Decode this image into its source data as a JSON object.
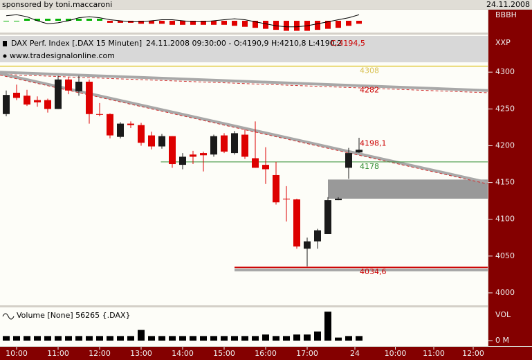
{
  "header": {
    "sponsor": "sponsored by toni.maccaroni",
    "date": "24.11.2008"
  },
  "chart_data": [
    {
      "type": "indicator",
      "axis_label": "BBBH",
      "up_color": "#00b000",
      "down_color": "#e00000",
      "line_color": "#000000",
      "x": [
        0,
        1,
        2,
        3,
        4,
        5,
        6,
        7,
        8,
        9,
        10,
        11,
        12,
        13,
        14,
        15,
        16,
        17,
        18,
        19,
        20,
        21,
        22,
        23,
        24,
        25,
        26,
        27,
        28,
        29,
        30,
        31,
        32,
        33,
        34
      ],
      "values": [
        0,
        0,
        0.2,
        0.2,
        0.2,
        0.2,
        0.2,
        0.2,
        0.2,
        0.2,
        -0.2,
        -0.2,
        -0.2,
        -0.3,
        -0.3,
        -0.3,
        -0.4,
        -0.4,
        -0.4,
        -0.4,
        -0.4,
        -0.4,
        -0.5,
        -0.6,
        -0.7,
        -0.8,
        -0.9,
        -1,
        -1,
        -1,
        -0.9,
        -0.8,
        -0.7,
        -0.5,
        -0.3
      ],
      "line": [
        0.5,
        0.6,
        0.4,
        0,
        -0.3,
        -0.2,
        0,
        0.3,
        0.4,
        0.3,
        0.1,
        0,
        -0.1,
        -0.1,
        0,
        0.1,
        0.1,
        0,
        -0.1,
        -0.1,
        0,
        0.1,
        0.2,
        0.1,
        -0.1,
        -0.3,
        -0.5,
        -0.6,
        -0.6,
        -0.5,
        -0.3,
        -0.1,
        0.1,
        0.3,
        0.6
      ],
      "ylim": [
        -1.1,
        1.1
      ],
      "xlim": [
        -0.6,
        46.4
      ]
    },
    {
      "type": "candlestick",
      "title": "DAX Perf. Index [.DAX 15 Minuten]",
      "subtitle": "24.11.2008 09:30:00 - O:4190,9 H:4210,8 L:4190,2",
      "close_label": "C:4194,5",
      "source": "www.tradesignalonline.com",
      "axis_label": "XXP",
      "up_color": "#1a1a1a",
      "down_color": "#dd0000",
      "x": [
        0,
        1,
        2,
        3,
        4,
        5,
        6,
        7,
        8,
        9,
        10,
        11,
        12,
        13,
        14,
        15,
        16,
        17,
        18,
        19,
        20,
        21,
        22,
        23,
        24,
        25,
        26,
        27,
        28,
        29,
        30,
        31,
        32,
        33,
        34
      ],
      "open": [
        4243,
        4272,
        4268,
        4262,
        4262,
        4250,
        4290,
        4274,
        4287,
        4243,
        4243,
        4212,
        4230,
        4228,
        4214,
        4199,
        4213,
        4174,
        4188,
        4190,
        4188,
        4214,
        4190,
        4215,
        4183,
        4174,
        4160,
        4128,
        4127,
        4060,
        4070,
        4080,
        4126,
        4170,
        4190.9
      ],
      "high": [
        4275,
        4283,
        4276,
        4267,
        4264,
        4295,
        4293,
        4295,
        4290,
        4258,
        4244,
        4232,
        4233,
        4231,
        4219,
        4216,
        4213,
        4190,
        4193,
        4192,
        4215,
        4217,
        4220,
        4222,
        4233,
        4198,
        4178,
        4145,
        4128,
        4075,
        4087,
        4130,
        4130,
        4197,
        4210.8
      ],
      "low": [
        4240,
        4262,
        4254,
        4253,
        4245,
        4250,
        4270,
        4268,
        4230,
        4240,
        4210,
        4210,
        4224,
        4200,
        4195,
        4196,
        4170,
        4168,
        4175,
        4165,
        4185,
        4190,
        4188,
        4182,
        4170,
        4148,
        4120,
        4097,
        4060,
        4036,
        4060,
        4080,
        4126,
        4155,
        4190.2
      ],
      "close": [
        4269,
        4265,
        4256,
        4259,
        4250,
        4290,
        4275,
        4287,
        4243,
        4242,
        4214,
        4230,
        4228,
        4204,
        4199,
        4213,
        4175,
        4185,
        4185,
        4187,
        4213,
        4192,
        4217,
        4185,
        4170,
        4168,
        4123,
        4127,
        4063,
        4070,
        4085,
        4126,
        4128,
        4190,
        4194.5
      ],
      "xlim": [
        -0.6,
        46.4
      ],
      "xticks": [
        {
          "value": 1,
          "label": "10:00"
        },
        {
          "value": 5,
          "label": "11:00"
        },
        {
          "value": 9,
          "label": "12:00"
        },
        {
          "value": 13,
          "label": "13:00"
        },
        {
          "value": 17,
          "label": "14:00"
        },
        {
          "value": 21,
          "label": "15:00"
        },
        {
          "value": 25,
          "label": "16:00"
        },
        {
          "value": 29,
          "label": "17:00"
        },
        {
          "value": 33.6,
          "label": "24"
        },
        {
          "value": 37.5,
          "label": "10:00"
        },
        {
          "value": 41.2,
          "label": "11:00"
        },
        {
          "value": 45,
          "label": "12:00"
        }
      ],
      "ylim": [
        3984,
        4351
      ],
      "yticks": [
        4000,
        4050,
        4100,
        4150,
        4200,
        4250,
        4300
      ],
      "lines": [
        {
          "color": "#a8a8a8",
          "width": 4,
          "x": [
            -0.6,
            46.4
          ],
          "y": [
            4300,
            4275
          ]
        },
        {
          "color": "#d03030",
          "width": 1,
          "dash": true,
          "x": [
            -0.6,
            46.4
          ],
          "y": [
            4297,
            4272
          ]
        },
        {
          "color": "#a8a8a8",
          "width": 4,
          "x": [
            -0.6,
            46.4
          ],
          "y": [
            4298,
            4150
          ]
        },
        {
          "color": "#d03030",
          "width": 1,
          "dash": true,
          "x": [
            -0.6,
            46.4
          ],
          "y": [
            4296,
            4148
          ]
        },
        {
          "color": "#e8d870",
          "width": 2,
          "x": [
            -0.6,
            46.4
          ],
          "y": [
            4308,
            4308
          ]
        },
        {
          "color": "#2e8b2e",
          "width": 1,
          "x": [
            14.9,
            46.4
          ],
          "y": [
            4178,
            4178
          ]
        },
        {
          "color": "#a8a8a8",
          "width": 4,
          "x": [
            22,
            46.4
          ],
          "y": [
            4031,
            4031
          ]
        },
        {
          "color": "#cc0000",
          "width": 2,
          "x": [
            22,
            46.4
          ],
          "y": [
            4034.6,
            4034.6
          ]
        }
      ],
      "zone": {
        "color": "#999999",
        "x": [
          31,
          46.4
        ],
        "y": [
          4128,
          4154
        ]
      },
      "annotations": [
        {
          "value": 4308,
          "label": "4308",
          "color": "#d8c050"
        },
        {
          "value": 4282,
          "label": "4282",
          "color": "#cc0000"
        },
        {
          "value": 4198.1,
          "label": "4198,1",
          "color": "#cc0000"
        },
        {
          "value": 4178,
          "label": "4178",
          "color": "#2e8b2e"
        },
        {
          "value": 4034.6,
          "label": "4034,6",
          "color": "#cc0000"
        }
      ]
    },
    {
      "type": "bar",
      "title": "Volume [None] 56265 {.DAX}",
      "axis_label": "VOL",
      "color": "#000000",
      "x": [
        0,
        1,
        2,
        3,
        4,
        5,
        6,
        7,
        8,
        9,
        10,
        11,
        12,
        13,
        14,
        15,
        16,
        17,
        18,
        19,
        20,
        21,
        22,
        23,
        24,
        25,
        26,
        27,
        28,
        29,
        30,
        31,
        32,
        33,
        34
      ],
      "values": [
        1.5,
        1.5,
        1.5,
        1.5,
        1.5,
        1.5,
        1.5,
        1.5,
        1.5,
        1.5,
        1.5,
        1.5,
        1.5,
        3.5,
        1.5,
        1.5,
        1.5,
        1.5,
        1.5,
        1.5,
        1.5,
        1.5,
        1.5,
        1.5,
        1.5,
        2,
        1.5,
        1.5,
        2,
        2,
        3,
        9.5,
        1,
        1.5,
        1.5
      ],
      "ylim": [
        0,
        10
      ],
      "yticks": [
        {
          "value": 0,
          "label": "0 M"
        }
      ],
      "xlim": [
        -0.6,
        46.4
      ]
    }
  ]
}
